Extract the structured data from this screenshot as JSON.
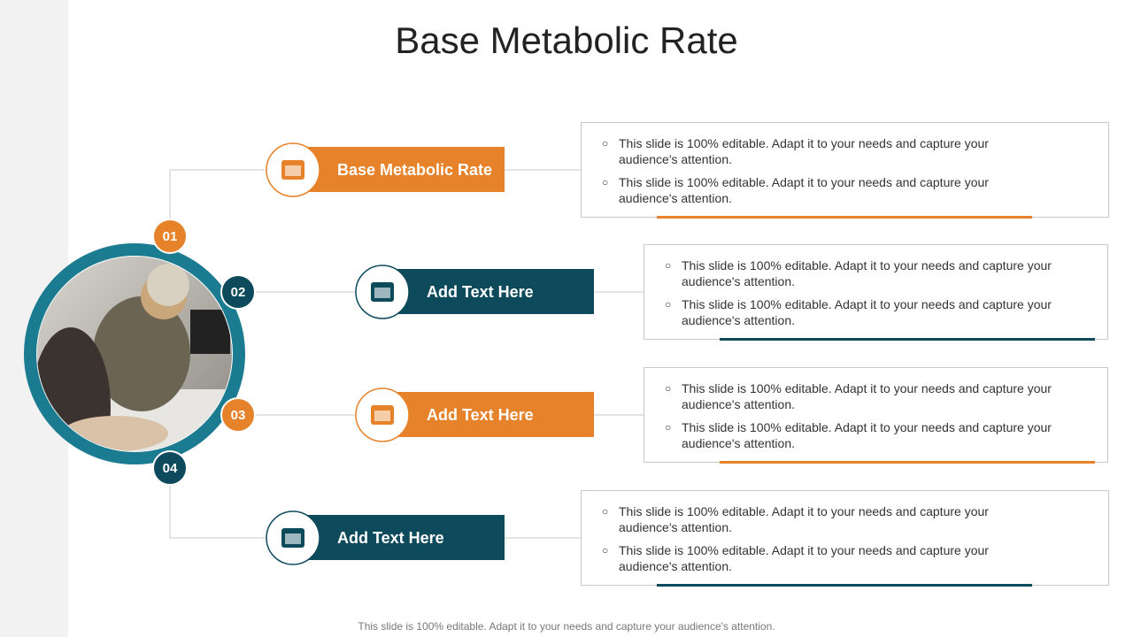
{
  "title": "Base Metabolic Rate",
  "items": [
    {
      "number": "01",
      "label": "Base Metabolic Rate",
      "bullets": [
        "This slide is 100% editable. Adapt it to your needs and capture your audience's attention.",
        "This slide is 100% editable. Adapt it to your needs and capture your audience's attention."
      ]
    },
    {
      "number": "02",
      "label": "Add Text Here",
      "bullets": [
        "This slide is 100% editable. Adapt it to your needs and capture your audience's attention.",
        "This slide is 100% editable. Adapt it to your needs and capture your audience's attention."
      ]
    },
    {
      "number": "03",
      "label": "Add Text Here",
      "bullets": [
        "This slide is 100% editable. Adapt it to your needs and capture your audience's attention.",
        "This slide is 100% editable. Adapt it to your needs and capture your audience's attention."
      ]
    },
    {
      "number": "04",
      "label": "Add Text Here",
      "bullets": [
        "This slide is 100% editable. Adapt it to your needs and capture your audience's attention.",
        "This slide is 100% editable. Adapt it to your needs and capture your audience's attention."
      ]
    }
  ],
  "footer": "This slide is 100% editable. Adapt it to your needs and capture your audience's attention."
}
